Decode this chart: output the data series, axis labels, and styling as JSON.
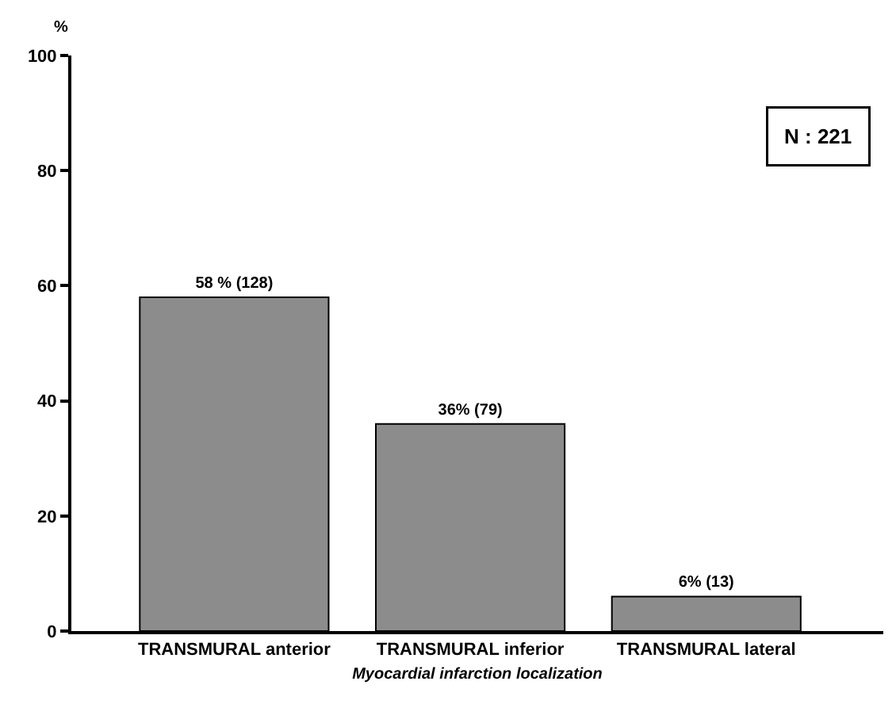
{
  "chart_data": {
    "type": "bar",
    "categories": [
      "TRANSMURAL anterior",
      "TRANSMURAL inferior",
      "TRANSMURAL lateral"
    ],
    "values": [
      58,
      36,
      6
    ],
    "value_labels": [
      "58 % (128)",
      "36% (79)",
      "6% (13)"
    ],
    "color": "#8c8c8c",
    "ylabel": "%",
    "xlabel": "Myocardial infarction localization",
    "ylim": [
      0,
      100
    ],
    "yticks": [
      0,
      20,
      40,
      60,
      80,
      100
    ],
    "annotations": [
      "N : 221"
    ]
  }
}
